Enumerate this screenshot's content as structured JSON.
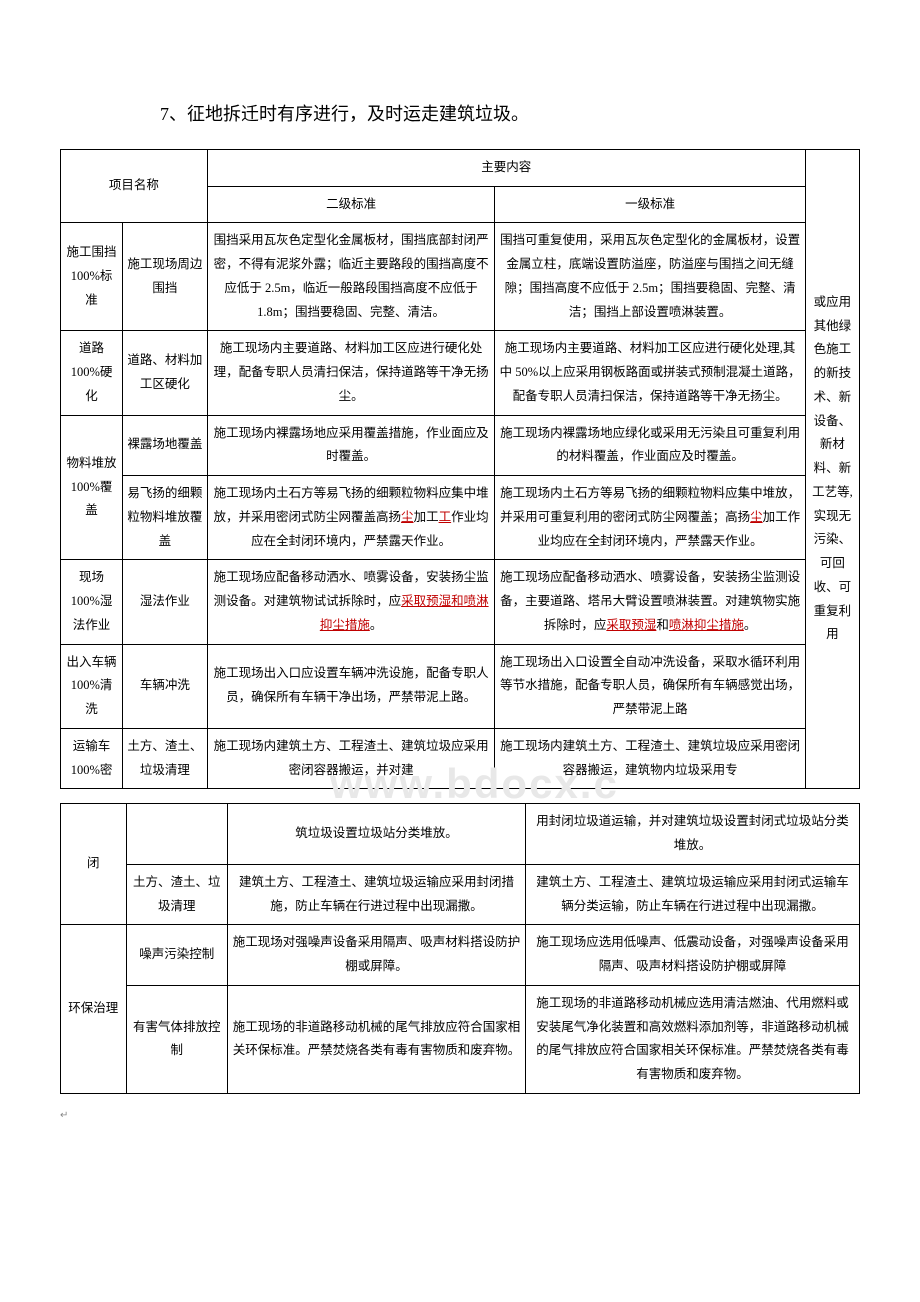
{
  "heading": "7、征地拆迁时有序进行，及时运走建筑垃圾。",
  "watermark": "www.bdocx.c",
  "table1": {
    "hdr_proj": "项目名称",
    "hdr_main": "主要内容",
    "hdr_l2": "二级标准",
    "hdr_l1": "一级标准",
    "rows": [
      {
        "a": "施工围挡 100%标准",
        "b": "施工现场周边围挡",
        "c": "围挡采用瓦灰色定型化金属板材，围挡底部封闭严密，不得有泥浆外露；临近主要路段的围挡高度不应低于 2.5m，临近一般路段围挡高度不应低于 1.8m；围挡要稳固、完整、清洁。",
        "d": "围挡可重复使用，采用瓦灰色定型化的金属板材，设置金属立柱，底端设置防溢座，防溢座与围挡之间无缝隙；围挡高度不应低于 2.5m；围挡要稳固、完整、清洁；围挡上部设置喷淋装置。"
      },
      {
        "a": "道路 100%硬化",
        "b": "道路、材料加工区硬化",
        "c": "施工现场内主要道路、材料加工区应进行硬化处理，配备专职人员清扫保洁，保持道路等干净无扬尘。",
        "d": "施工现场内主要道路、材料加工区应进行硬化处理,其中 50%以上应采用钢板路面或拼装式预制混凝土道路，配备专职人员清扫保洁，保持道路等干净无扬尘。"
      },
      {
        "a": "物料堆放 100%覆盖",
        "b1": "裸露场地覆盖",
        "c1": "施工现场内裸露场地应采用覆盖措施，作业面应及时覆盖。",
        "d1": "施工现场内裸露场地应绿化或采用无污染且可重复利用的材料覆盖，作业面应及时覆盖。",
        "b2": "易飞扬的细颗粒物料堆放覆盖",
        "c2_p1": "施工现场内土石方等易飞扬的细颗粒物料应集中堆放，并采用密闭式防尘网覆盖高扬",
        "c2_red1": "尘",
        "c2_p2": "加工",
        "c2_red2": "工",
        "c2_p3": "作业均应在全封闭环境内，严禁露天作业。",
        "d2_p1": "施工现场内土石方等易飞扬的细颗粒物料应集中堆放，并采用可重复利用的密闭式防尘网覆盖；高扬",
        "d2_red1": "尘",
        "d2_p2": "加工作业均应在全封闭环境内，严禁露天作业。"
      },
      {
        "a": "现场 100%湿法作业",
        "b": "湿法作业",
        "c_p1": "施工现场应配备移动洒水、喷雾设备，安装扬尘监测设备。对建筑物试试拆除时，应",
        "c_red": "采取预湿和喷淋抑尘措施",
        "c_p2": "。",
        "d_p1": "施工现场应配备移动洒水、喷雾设备，安装扬尘监测设备，主要道路、塔吊大臂设置喷淋装置。对建筑物实施拆除时，应",
        "d_red1": "采取预湿",
        "d_p2": "和",
        "d_red2": "喷淋抑尘措施",
        "d_p3": "。"
      },
      {
        "a": "出入车辆 100%清洗",
        "b": "车辆冲洗",
        "c": "施工现场出入口应设置车辆冲洗设施，配备专职人员，确保所有车辆干净出场，严禁带泥上路。",
        "d": "施工现场出入口设置全自动冲洗设备，采取水循环利用等节水措施，配备专职人员，确保所有车辆感觉出场，严禁带泥上路"
      },
      {
        "a": "运输车 100%密",
        "b": "土方、渣土、垃圾清理",
        "c": "施工现场内建筑土方、工程渣土、建筑垃圾应采用密闭容器搬运，并对建",
        "d": "施工现场内建筑土方、工程渣土、建筑垃圾应采用密闭容器搬运，建筑物内垃圾采用专"
      }
    ],
    "side": "或应用其他绿色施工的新技术、新设备、新材料、新工艺等,实现无污染、可回收、可重复利用"
  },
  "table2": {
    "rows": [
      {
        "a": "闭",
        "b": "",
        "c": "筑垃圾设置垃圾站分类堆放。",
        "d": "用封闭垃圾道运输，并对建筑垃圾设置封闭式垃圾站分类堆放。"
      },
      {
        "b": "土方、渣土、垃圾清理",
        "c": "建筑土方、工程渣土、建筑垃圾运输应采用封闭措施，防止车辆在行进过程中出现漏撒。",
        "d": "建筑土方、工程渣土、建筑垃圾运输应采用封闭式运输车辆分类运输，防止车辆在行进过程中出现漏撒。"
      },
      {
        "a": "环保治理",
        "b1": "噪声污染控制",
        "c1": "施工现场对强噪声设备采用隔声、吸声材料搭设防护棚或屏障。",
        "d1": "施工现场应选用低噪声、低震动设备，对强噪声设备采用隔声、吸声材料搭设防护棚或屏障",
        "b2": "有害气体排放控制",
        "c2": "施工现场的非道路移动机械的尾气排放应符合国家相关环保标准。严禁焚烧各类有毒有害物质和废弃物。",
        "d2": "施工现场的非道路移动机械应选用清洁燃油、代用燃料或安装尾气净化装置和高效燃料添加剂等，非道路移动机械的尾气排放应符合国家相关环保标准。严禁焚烧各类有毒有害物质和废弃物。"
      }
    ]
  }
}
